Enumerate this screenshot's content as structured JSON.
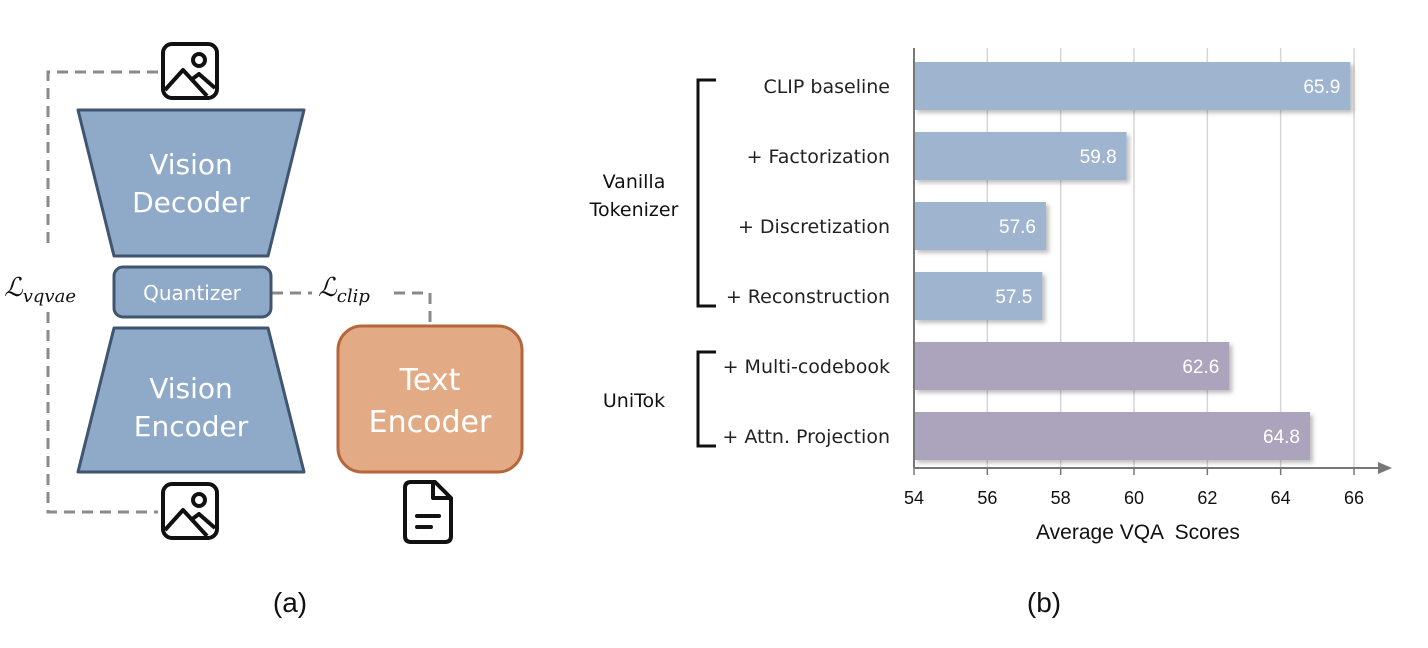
{
  "panel_a": {
    "label": "(a)",
    "vision_decoder": {
      "line1": "Vision",
      "line2": "Decoder"
    },
    "vision_encoder": {
      "line1": "Vision",
      "line2": "Encoder"
    },
    "quantizer": "Quantizer",
    "text_encoder": {
      "line1": "Text",
      "line2": "Encoder"
    },
    "loss_vqvae": {
      "symbol": "ℒ",
      "subscript": "vqvae"
    },
    "loss_clip": {
      "symbol": "ℒ",
      "subscript": "clip"
    },
    "icons": [
      "image-icon-top",
      "image-icon-bottom",
      "document-icon"
    ],
    "colors": {
      "vision_fill": "#8fa9c8",
      "vision_stroke": "#3f5570",
      "text_fill": "#e3aa86",
      "text_stroke": "#b5663a",
      "dash": "#8a8a8a"
    }
  },
  "panel_b": {
    "label": "(b)",
    "groups": [
      {
        "name_lines": [
          "Vanilla",
          "Tokenizer"
        ]
      },
      {
        "name_lines": [
          "UniTok"
        ]
      }
    ],
    "colors": {
      "vanilla": "#9fb5cf",
      "unitok": "#aca3bd",
      "grid": "#d6d6d6",
      "axis": "#777777"
    }
  },
  "chart_data": {
    "type": "bar",
    "orientation": "horizontal",
    "categories": [
      "CLIP baseline",
      "+ Factorization",
      "+ Discretization",
      "+ Reconstruction",
      "+ Multi-codebook",
      "+ Attn. Projection"
    ],
    "values": [
      65.9,
      59.8,
      57.6,
      57.5,
      62.6,
      64.8
    ],
    "value_labels": [
      "65.9",
      "59.8",
      "57.6",
      "57.5",
      "62.6",
      "64.8"
    ],
    "category_groups": [
      0,
      0,
      0,
      0,
      1,
      1
    ],
    "xlabel": "Average VQA  Scores",
    "ylabel": "",
    "xlim": [
      54,
      66
    ],
    "xticks": [
      54,
      56,
      58,
      60,
      62,
      64,
      66
    ],
    "xtick_labels": [
      "54",
      "56",
      "58",
      "60",
      "62",
      "64",
      "66"
    ],
    "grid": true
  }
}
